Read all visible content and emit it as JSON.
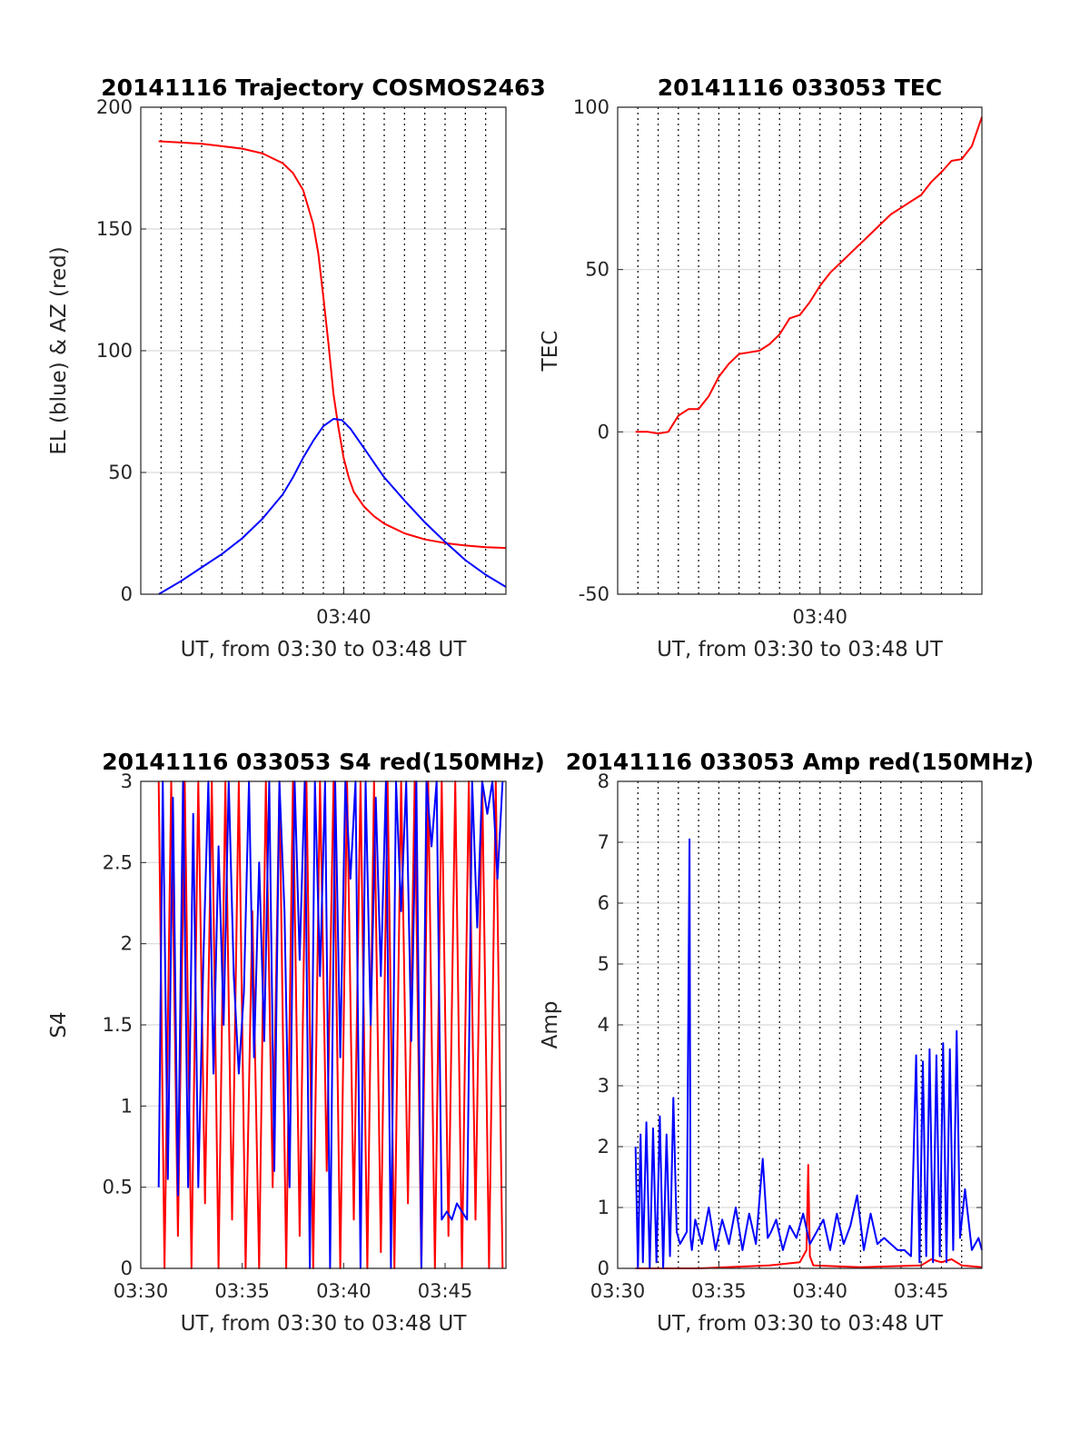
{
  "chart_data": [
    {
      "type": "line",
      "title": "20141116 Trajectory COSMOS2463",
      "xlabel": "UT, from 03:30 to 03:48 UT",
      "ylabel": "EL (blue) & AZ (red)",
      "xlim": [
        "03:30",
        "03:48"
      ],
      "ylim": [
        0,
        200
      ],
      "yticks": [
        "0",
        "50",
        "100",
        "150",
        "200"
      ],
      "xticks": [
        {
          "t": "03:40",
          "label": "03:40"
        }
      ],
      "grid_minutes": [
        "03:31",
        "03:32",
        "03:33",
        "03:34",
        "03:35",
        "03:36",
        "03:37",
        "03:38",
        "03:39",
        "03:40",
        "03:41",
        "03:42",
        "03:43",
        "03:44",
        "03:45",
        "03:46",
        "03:47"
      ],
      "series": [
        {
          "color": "#ff0000",
          "x": [
            "03:30:53",
            "03:32:00",
            "03:33:00",
            "03:34:00",
            "03:35:00",
            "03:36:00",
            "03:37:00",
            "03:37:30",
            "03:38:00",
            "03:38:30",
            "03:38:45",
            "03:39:00",
            "03:39:15",
            "03:39:30",
            "03:39:45",
            "03:40:00",
            "03:40:15",
            "03:40:30",
            "03:41:00",
            "03:41:30",
            "03:42:00",
            "03:43:00",
            "03:44:00",
            "03:45:00",
            "03:46:00",
            "03:47:00",
            "03:48:00"
          ],
          "y": [
            186,
            185.5,
            185,
            184,
            183,
            181,
            177,
            173,
            166,
            152,
            140,
            122,
            103,
            82,
            68,
            56,
            48,
            42,
            36,
            32,
            29,
            25,
            22.5,
            21,
            20,
            19.3,
            19
          ]
        },
        {
          "color": "#0000ff",
          "x": [
            "03:30:53",
            "03:32:00",
            "03:33:00",
            "03:34:00",
            "03:35:00",
            "03:36:00",
            "03:37:00",
            "03:37:30",
            "03:38:00",
            "03:38:30",
            "03:39:00",
            "03:39:30",
            "03:39:55",
            "03:40:20",
            "03:40:45",
            "03:41:00",
            "03:41:30",
            "03:42:00",
            "03:43:00",
            "03:44:00",
            "03:45:00",
            "03:46:00",
            "03:47:00",
            "03:48:00"
          ],
          "y": [
            0,
            5.5,
            11,
            16.5,
            23,
            31,
            41,
            48,
            56,
            63,
            69,
            72,
            71.5,
            68,
            63,
            60,
            54,
            48,
            38.5,
            29.5,
            21.5,
            14,
            8,
            3
          ]
        }
      ]
    },
    {
      "type": "line",
      "title": "20141116 033053 TEC",
      "xlabel": "UT, from 03:30 to 03:48 UT",
      "ylabel": "TEC",
      "xlim": [
        "03:30",
        "03:48"
      ],
      "ylim": [
        -50,
        100
      ],
      "yticks": [
        "-50",
        "0",
        "50",
        "100"
      ],
      "xticks": [
        {
          "t": "03:40",
          "label": "03:40"
        }
      ],
      "grid_minutes": [
        "03:31",
        "03:32",
        "03:33",
        "03:34",
        "03:35",
        "03:36",
        "03:37",
        "03:38",
        "03:39",
        "03:40",
        "03:41",
        "03:42",
        "03:43",
        "03:44",
        "03:45",
        "03:46",
        "03:47"
      ],
      "series": [
        {
          "color": "#ff0000",
          "x": [
            "03:30:53",
            "03:31:30",
            "03:32:00",
            "03:32:30",
            "03:33:00",
            "03:33:30",
            "03:34:00",
            "03:34:30",
            "03:35:00",
            "03:35:30",
            "03:36:00",
            "03:36:30",
            "03:37:00",
            "03:37:30",
            "03:38:00",
            "03:38:30",
            "03:39:00",
            "03:39:30",
            "03:40:00",
            "03:40:30",
            "03:41:00",
            "03:41:30",
            "03:42:00",
            "03:42:30",
            "03:43:00",
            "03:43:30",
            "03:44:00",
            "03:44:30",
            "03:45:00",
            "03:45:30",
            "03:46:00",
            "03:46:30",
            "03:47:00",
            "03:47:30",
            "03:48:00"
          ],
          "y": [
            0,
            0,
            -0.5,
            0,
            5,
            7,
            7,
            11,
            17,
            21,
            24,
            24.5,
            25,
            27,
            30,
            35,
            36,
            40,
            45,
            49,
            52,
            55,
            58,
            61,
            64,
            67,
            69,
            71,
            73,
            77,
            80,
            83.5,
            84,
            88,
            97
          ]
        }
      ]
    },
    {
      "type": "line",
      "title": "20141116 033053 S4 red(150MHz)",
      "xlabel": "UT, from 03:30 to 03:48 UT",
      "ylabel": "S4",
      "xlim": [
        "03:30",
        "03:48"
      ],
      "ylim": [
        0,
        3
      ],
      "yticks": [
        "0",
        "0.5",
        "1",
        "1.5",
        "2",
        "2.5",
        "3"
      ],
      "xticks": [
        {
          "t": "03:30",
          "label": "03:30"
        },
        {
          "t": "03:35",
          "label": "03:35"
        },
        {
          "t": "03:40",
          "label": "03:40"
        },
        {
          "t": "03:45",
          "label": "03:45"
        }
      ],
      "grid_minutes": [],
      "series": [
        {
          "color": "#ff0000",
          "x": [
            "03:30:53",
            "03:31:10",
            "03:31:30",
            "03:31:50",
            "03:32:10",
            "03:32:30",
            "03:32:50",
            "03:33:10",
            "03:33:30",
            "03:33:50",
            "03:34:10",
            "03:34:30",
            "03:34:50",
            "03:35:10",
            "03:35:30",
            "03:35:50",
            "03:36:10",
            "03:36:30",
            "03:36:50",
            "03:37:10",
            "03:37:30",
            "03:37:50",
            "03:38:10",
            "03:38:30",
            "03:38:50",
            "03:39:10",
            "03:39:30",
            "03:39:50",
            "03:40:10",
            "03:40:30",
            "03:40:50",
            "03:41:10",
            "03:41:30",
            "03:41:50",
            "03:42:10",
            "03:42:30",
            "03:42:50",
            "03:43:10",
            "03:43:30",
            "03:43:50",
            "03:44:10",
            "03:44:30",
            "03:44:50",
            "03:45:10",
            "03:45:30",
            "03:45:50",
            "03:46:10",
            "03:46:30",
            "03:46:50",
            "03:47:10",
            "03:47:30",
            "03:47:50"
          ],
          "y": [
            3,
            0,
            3,
            0.2,
            3,
            0,
            3,
            0.4,
            3,
            0,
            3,
            0.3,
            3,
            0,
            2.2,
            0,
            3,
            0.5,
            3,
            0,
            3,
            0.2,
            3,
            0,
            3,
            0.6,
            3,
            0,
            3,
            0.3,
            3,
            0,
            3,
            0.1,
            3,
            0,
            3,
            0.4,
            3,
            0,
            3,
            0,
            3,
            0.2,
            3,
            0,
            3,
            0.3,
            3,
            0,
            3,
            0
          ]
        },
        {
          "color": "#0000ff",
          "x": [
            "03:30:53",
            "03:31:05",
            "03:31:20",
            "03:31:35",
            "03:31:50",
            "03:32:05",
            "03:32:20",
            "03:32:35",
            "03:32:50",
            "03:33:05",
            "03:33:20",
            "03:33:35",
            "03:33:50",
            "03:34:05",
            "03:34:20",
            "03:34:35",
            "03:34:50",
            "03:35:05",
            "03:35:20",
            "03:35:35",
            "03:35:50",
            "03:36:05",
            "03:36:20",
            "03:36:35",
            "03:36:50",
            "03:37:05",
            "03:37:20",
            "03:37:35",
            "03:37:50",
            "03:38:05",
            "03:38:20",
            "03:38:35",
            "03:38:50",
            "03:39:05",
            "03:39:20",
            "03:39:35",
            "03:39:50",
            "03:40:05",
            "03:40:20",
            "03:40:35",
            "03:40:50",
            "03:41:05",
            "03:41:20",
            "03:41:35",
            "03:41:50",
            "03:42:05",
            "03:42:20",
            "03:42:35",
            "03:42:50",
            "03:43:05",
            "03:43:20",
            "03:43:35",
            "03:43:50",
            "03:44:05",
            "03:44:20",
            "03:44:35",
            "03:44:50",
            "03:45:05",
            "03:45:20",
            "03:45:35",
            "03:45:50",
            "03:46:05",
            "03:46:20",
            "03:46:35",
            "03:46:50",
            "03:47:05",
            "03:47:20",
            "03:47:35",
            "03:47:50"
          ],
          "y": [
            0.5,
            3,
            0.55,
            2.9,
            0.45,
            3,
            0.5,
            2.8,
            0.5,
            1.9,
            3,
            1.2,
            2.6,
            1.5,
            3,
            1.8,
            1.2,
            1.7,
            3,
            1.3,
            2.5,
            1.4,
            3,
            0.6,
            3,
            2.2,
            0.5,
            3,
            1.9,
            3,
            0,
            3,
            1.8,
            3,
            0,
            3,
            1.3,
            3,
            2.4,
            3,
            0,
            3,
            1.5,
            2.9,
            1.8,
            3,
            0,
            3,
            2.2,
            3,
            1.4,
            3,
            0,
            3,
            2.6,
            3,
            0.3,
            0.35,
            0.3,
            0.4,
            0.35,
            0.3,
            3,
            2.1,
            3,
            2.8,
            3,
            2.4,
            3
          ]
        }
      ]
    },
    {
      "type": "line",
      "title": "20141116 033053 Amp red(150MHz)",
      "xlabel": "UT, from 03:30 to 03:48 UT",
      "ylabel": "Amp",
      "xlim": [
        "03:30",
        "03:48"
      ],
      "ylim": [
        0,
        8
      ],
      "yticks": [
        "0",
        "1",
        "2",
        "3",
        "4",
        "5",
        "6",
        "7",
        "8"
      ],
      "xticks": [
        {
          "t": "03:30",
          "label": "03:30"
        },
        {
          "t": "03:35",
          "label": "03:35"
        },
        {
          "t": "03:40",
          "label": "03:40"
        },
        {
          "t": "03:45",
          "label": "03:45"
        }
      ],
      "grid_minutes": [
        "03:31",
        "03:32",
        "03:33",
        "03:34",
        "03:35",
        "03:36",
        "03:37",
        "03:38",
        "03:39",
        "03:40",
        "03:41",
        "03:42",
        "03:43",
        "03:44",
        "03:45",
        "03:46",
        "03:47"
      ],
      "series": [
        {
          "color": "#ff0000",
          "x": [
            "03:30:53",
            "03:34:00",
            "03:37:30",
            "03:39:00",
            "03:39:20",
            "03:39:25",
            "03:39:30",
            "03:39:40",
            "03:42:00",
            "03:45:00",
            "03:45:30",
            "03:46:00",
            "03:46:30",
            "03:47:00",
            "03:48:00"
          ],
          "y": [
            0,
            0,
            0.05,
            0.1,
            0.3,
            1.7,
            0.2,
            0.05,
            0.02,
            0.05,
            0.15,
            0.1,
            0.15,
            0.05,
            0.02
          ]
        },
        {
          "color": "#0000ff",
          "x": [
            "03:30:53",
            "03:31:00",
            "03:31:08",
            "03:31:15",
            "03:31:25",
            "03:31:35",
            "03:31:45",
            "03:31:55",
            "03:32:05",
            "03:32:15",
            "03:32:25",
            "03:32:35",
            "03:32:45",
            "03:32:55",
            "03:33:05",
            "03:33:15",
            "03:33:25",
            "03:33:33",
            "03:33:36",
            "03:33:40",
            "03:33:50",
            "03:34:10",
            "03:34:30",
            "03:34:50",
            "03:35:10",
            "03:35:30",
            "03:35:50",
            "03:36:10",
            "03:36:30",
            "03:36:50",
            "03:37:10",
            "03:37:25",
            "03:37:35",
            "03:37:50",
            "03:38:10",
            "03:38:30",
            "03:38:50",
            "03:39:10",
            "03:39:30",
            "03:39:50",
            "03:40:10",
            "03:40:30",
            "03:40:50",
            "03:41:10",
            "03:41:30",
            "03:41:50",
            "03:42:10",
            "03:42:30",
            "03:42:50",
            "03:43:10",
            "03:43:30",
            "03:43:50",
            "03:44:10",
            "03:44:30",
            "03:44:45",
            "03:44:55",
            "03:45:05",
            "03:45:15",
            "03:45:25",
            "03:45:35",
            "03:45:45",
            "03:45:55",
            "03:46:05",
            "03:46:15",
            "03:46:25",
            "03:46:35",
            "03:46:45",
            "03:46:55",
            "03:47:10",
            "03:47:30",
            "03:47:50",
            "03:48:00"
          ],
          "y": [
            2,
            0,
            2.2,
            0.1,
            2.4,
            0,
            2.3,
            0.1,
            2.5,
            0,
            2.2,
            0.2,
            2.8,
            0.6,
            0.4,
            0.5,
            0.6,
            7.05,
            0.5,
            0.3,
            0.8,
            0.4,
            1,
            0.3,
            0.8,
            0.4,
            1,
            0.3,
            0.9,
            0.4,
            1.8,
            0.5,
            0.6,
            0.8,
            0.3,
            0.7,
            0.5,
            0.9,
            0.4,
            0.6,
            0.8,
            0.3,
            0.9,
            0.4,
            0.7,
            1.2,
            0.3,
            0.9,
            0.4,
            0.5,
            0.4,
            0.3,
            0.3,
            0.2,
            3.5,
            0.1,
            3.4,
            0.2,
            3.6,
            0.1,
            3.5,
            0.2,
            3.7,
            0.1,
            3.6,
            0.3,
            3.9,
            0.5,
            1.3,
            0.3,
            0.5,
            0.3
          ]
        }
      ]
    }
  ]
}
